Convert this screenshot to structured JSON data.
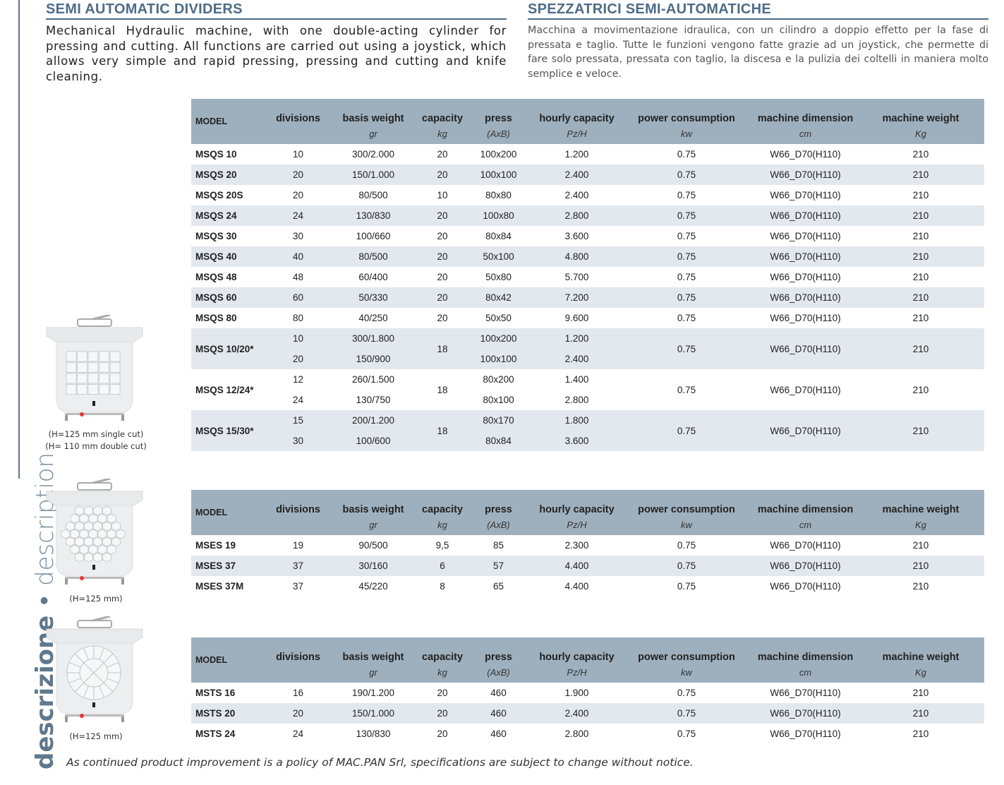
{
  "header": {
    "title_en": "SEMI AUTOMATIC DIVIDERS",
    "title_it": "SPEZZATRICI SEMI-AUTOMATICHE",
    "desc_en": "Mechanical Hydraulic machine, with one double-acting cylinder for pressing and cutting. All functions are carried out using a joystick, which allows very simple and rapid pressing, pressing and cutting and knife cleaning.",
    "desc_it": "Macchina a movimentazione idraulica, con un cilindro a doppio effetto per la fase di pressata e taglio. Tutte le funzioni vengono fatte grazie ad un joystick, che permette di fare solo pressata, pressata con taglio, la discesa e la pulizia dei coltelli in maniera molto semplice e veloce."
  },
  "side": {
    "bold": "descrizione",
    "dot": " • ",
    "light": "description"
  },
  "columns": {
    "labels": [
      "MODEL",
      "divisions",
      "basis weight",
      "capacity",
      "press",
      "hourly capacity",
      "power consumption",
      "machine dimension",
      "machine weight"
    ],
    "units": [
      "",
      "",
      "gr",
      "kg",
      "(AxB)",
      "Pz/H",
      "kw",
      "cm",
      "Kg"
    ]
  },
  "tables": [
    {
      "rows": [
        {
          "model": "MSQS 10",
          "div": [
            "10"
          ],
          "bw": [
            "300/2.000"
          ],
          "cap": "20",
          "press": [
            "100x200"
          ],
          "hc": [
            "1.200"
          ],
          "pw": "0.75",
          "dim": "W66_D70(H110)",
          "wt": "210"
        },
        {
          "model": "MSQS 20",
          "div": [
            "20"
          ],
          "bw": [
            "150/1.000"
          ],
          "cap": "20",
          "press": [
            "100x100"
          ],
          "hc": [
            "2.400"
          ],
          "pw": "0.75",
          "dim": "W66_D70(H110)",
          "wt": "210"
        },
        {
          "model": "MSQS 20S",
          "div": [
            "20"
          ],
          "bw": [
            "80/500"
          ],
          "cap": "10",
          "press": [
            "80x80"
          ],
          "hc": [
            "2.400"
          ],
          "pw": "0.75",
          "dim": "W66_D70(H110)",
          "wt": "210"
        },
        {
          "model": "MSQS 24",
          "div": [
            "24"
          ],
          "bw": [
            "130/830"
          ],
          "cap": "20",
          "press": [
            "100x80"
          ],
          "hc": [
            "2.800"
          ],
          "pw": "0.75",
          "dim": "W66_D70(H110)",
          "wt": "210"
        },
        {
          "model": "MSQS 30",
          "div": [
            "30"
          ],
          "bw": [
            "100/660"
          ],
          "cap": "20",
          "press": [
            "80x84"
          ],
          "hc": [
            "3.600"
          ],
          "pw": "0.75",
          "dim": "W66_D70(H110)",
          "wt": "210"
        },
        {
          "model": "MSQS 40",
          "div": [
            "40"
          ],
          "bw": [
            "80/500"
          ],
          "cap": "20",
          "press": [
            "50x100"
          ],
          "hc": [
            "4.800"
          ],
          "pw": "0.75",
          "dim": "W66_D70(H110)",
          "wt": "210"
        },
        {
          "model": "MSQS 48",
          "div": [
            "48"
          ],
          "bw": [
            "60/400"
          ],
          "cap": "20",
          "press": [
            "50x80"
          ],
          "hc": [
            "5.700"
          ],
          "pw": "0.75",
          "dim": "W66_D70(H110)",
          "wt": "210"
        },
        {
          "model": "MSQS 60",
          "div": [
            "60"
          ],
          "bw": [
            "50/330"
          ],
          "cap": "20",
          "press": [
            "80x42"
          ],
          "hc": [
            "7.200"
          ],
          "pw": "0.75",
          "dim": "W66_D70(H110)",
          "wt": "210"
        },
        {
          "model": "MSQS 80",
          "div": [
            "80"
          ],
          "bw": [
            "40/250"
          ],
          "cap": "20",
          "press": [
            "50x50"
          ],
          "hc": [
            "9.600"
          ],
          "pw": "0.75",
          "dim": "W66_D70(H110)",
          "wt": "210"
        },
        {
          "model": "MSQS 10/20*",
          "div": [
            "10",
            "20"
          ],
          "bw": [
            "300/1.800",
            "150/900"
          ],
          "cap": "18",
          "press": [
            "100x200",
            "100x100"
          ],
          "hc": [
            "1.200",
            "2.400"
          ],
          "pw": "0.75",
          "dim": "W66_D70(H110)",
          "wt": "210"
        },
        {
          "model": "MSQS 12/24*",
          "div": [
            "12",
            "24"
          ],
          "bw": [
            "260/1.500",
            "130/750"
          ],
          "cap": "18",
          "press": [
            "80x200",
            "80x100"
          ],
          "hc": [
            "1.400",
            "2.800"
          ],
          "pw": "0.75",
          "dim": "W66_D70(H110)",
          "wt": "210"
        },
        {
          "model": "MSQS 15/30*",
          "div": [
            "15",
            "30"
          ],
          "bw": [
            "200/1.200",
            "100/600"
          ],
          "cap": "18",
          "press": [
            "80x170",
            "80x84"
          ],
          "hc": [
            "1.800",
            "3.600"
          ],
          "pw": "0.75",
          "dim": "W66_D70(H110)",
          "wt": "210"
        }
      ]
    },
    {
      "rows": [
        {
          "model": "MSES 19",
          "div": [
            "19"
          ],
          "bw": [
            "90/500"
          ],
          "cap": "9,5",
          "press": [
            "85"
          ],
          "hc": [
            "2.300"
          ],
          "pw": "0.75",
          "dim": "W66_D70(H110)",
          "wt": "210"
        },
        {
          "model": "MSES 37",
          "div": [
            "37"
          ],
          "bw": [
            "30/160"
          ],
          "cap": "6",
          "press": [
            "57"
          ],
          "hc": [
            "4.400"
          ],
          "pw": "0.75",
          "dim": "W66_D70(H110)",
          "wt": "210"
        },
        {
          "model": "MSES 37M",
          "div": [
            "37"
          ],
          "bw": [
            "45/220"
          ],
          "cap": "8",
          "press": [
            "65"
          ],
          "hc": [
            "4.400"
          ],
          "pw": "0.75",
          "dim": "W66_D70(H110)",
          "wt": "210"
        }
      ]
    },
    {
      "rows": [
        {
          "model": "MSTS 16",
          "div": [
            "16"
          ],
          "bw": [
            "190/1.200"
          ],
          "cap": "20",
          "press": [
            "460"
          ],
          "hc": [
            "1.900"
          ],
          "pw": "0.75",
          "dim": "W66_D70(H110)",
          "wt": "210"
        },
        {
          "model": "MSTS 20",
          "div": [
            "20"
          ],
          "bw": [
            "150/1.000"
          ],
          "cap": "20",
          "press": [
            "460"
          ],
          "hc": [
            "2.400"
          ],
          "pw": "0.75",
          "dim": "W66_D70(H110)",
          "wt": "210"
        },
        {
          "model": "MSTS 24",
          "div": [
            "24"
          ],
          "bw": [
            "130/830"
          ],
          "cap": "20",
          "press": [
            "460"
          ],
          "hc": [
            "2.800"
          ],
          "pw": "0.75",
          "dim": "W66_D70(H110)",
          "wt": "210"
        }
      ]
    }
  ],
  "images": [
    {
      "icon": "square-divider-machine",
      "caption1": "(H=125 mm single cut)",
      "caption2": "(H= 110 mm double cut)"
    },
    {
      "icon": "hexagon-divider-machine",
      "caption1": "(H=125 mm)"
    },
    {
      "icon": "round-divider-machine",
      "caption1": "(H=125 mm)"
    }
  ],
  "footer": {
    "note": "As continued product improvement is a policy of MAC.PAN Srl, specifications are subject to change without notice."
  },
  "colors": {
    "accent": "#4d6c88",
    "header_bg": "#9eb0be",
    "alt_row": "#e2e8ee"
  }
}
